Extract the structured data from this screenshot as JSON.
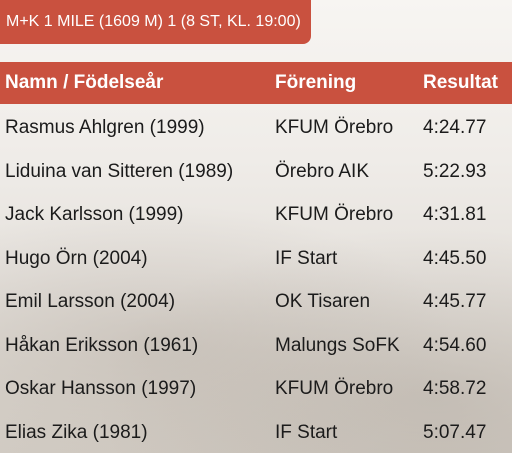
{
  "title": "M+K 1 MILE (1609 M) 1 (8 ST, KL. 19:00)",
  "table": {
    "headers": [
      "Namn / Födelseår",
      "Förening",
      "Resultat"
    ],
    "rows": [
      [
        "Rasmus Ahlgren (1999)",
        "KFUM Örebro",
        "4:24.77"
      ],
      [
        "Liduina van Sitteren (1989)",
        "Örebro AIK",
        "5:22.93"
      ],
      [
        "Jack Karlsson (1999)",
        "KFUM Örebro",
        "4:31.81"
      ],
      [
        "Hugo Örn (2004)",
        "IF Start",
        "4:45.50"
      ],
      [
        "Emil Larsson (2004)",
        "OK Tisaren",
        "4:45.77"
      ],
      [
        "Håkan Eriksson (1961)",
        "Malungs SoFK",
        "4:54.60"
      ],
      [
        "Oskar Hansson (1997)",
        "KFUM Örebro",
        "4:58.72"
      ],
      [
        "Elias Zika (1981)",
        "IF Start",
        "5:07.47"
      ]
    ]
  }
}
